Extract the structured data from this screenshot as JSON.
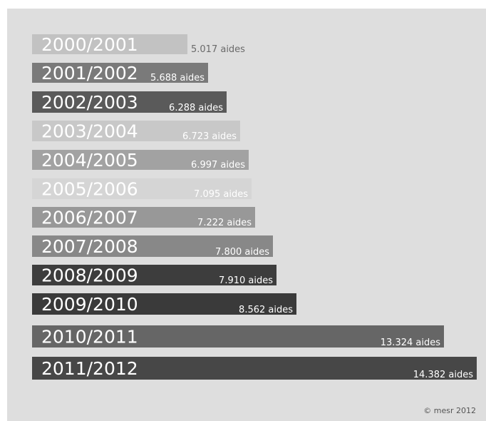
{
  "chart_data": {
    "type": "bar",
    "orientation": "horizontal",
    "categories": [
      "2000/2001",
      "2001/2002",
      "2002/2003",
      "2003/2004",
      "2004/2005",
      "2005/2006",
      "2006/2007",
      "2007/2008",
      "2008/2009",
      "2009/2010",
      "2010/2011",
      "2011/2012"
    ],
    "values": [
      5017,
      5688,
      6288,
      6723,
      6997,
      7095,
      7222,
      7800,
      7910,
      8562,
      13324,
      14382
    ],
    "value_labels": [
      "5.017 aides",
      "5.688 aides",
      "6.288 aides",
      "6.723 aides",
      "6.997 aides",
      "7.095 aides",
      "7.222 aides",
      "7.800 aides",
      "7.910 aides",
      "8.562 aides",
      "13.324 aides",
      "14.382 aides"
    ],
    "bar_colors": [
      "#c2c2c2",
      "#7a7a7a",
      "#5a5a5a",
      "#c8c8c8",
      "#a2a2a2",
      "#d5d5d5",
      "#989898",
      "#888888",
      "#3d3d3d",
      "#3a3a3a",
      "#666666",
      "#474747"
    ],
    "value_label_colors": [
      "#6a6a6a",
      "#ffffff",
      "#ffffff",
      "#ffffff",
      "#ffffff",
      "#ffffff",
      "#ffffff",
      "#ffffff",
      "#ffffff",
      "#ffffff",
      "#ffffff",
      "#ffffff"
    ],
    "title": "",
    "xlabel": "",
    "ylabel": "",
    "grid": false,
    "legend": "none"
  },
  "credit": "© mesr 2012"
}
